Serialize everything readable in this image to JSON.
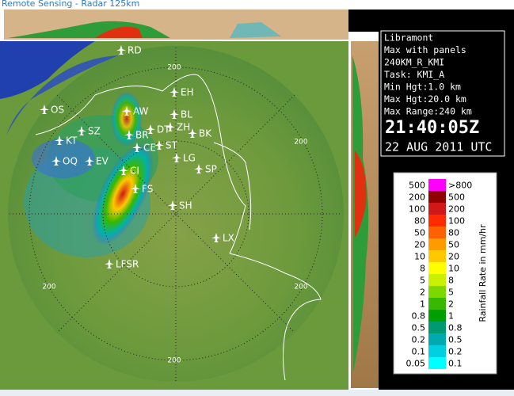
{
  "header": {
    "title": "Remote Sensing - Radar 125km"
  },
  "map": {
    "sites": [
      "RD",
      "EH",
      "OS",
      "AW",
      "BL",
      "SZ",
      "BR",
      "DT",
      "ZH",
      "BK",
      "KT",
      "CE",
      "ST",
      "LG",
      "OQ",
      "EV",
      "SP",
      "CI",
      "FS",
      "SH",
      "LX",
      "LFSR"
    ],
    "range_labels": [
      "200",
      "200",
      "200",
      "200",
      "200"
    ]
  },
  "info": {
    "lines": [
      "Libramont",
      "Max with panels",
      "240KM_R_KMI",
      "Task: KMI_A",
      "Min Hgt:1.0 km",
      "Max Hgt:20.0 km",
      "Max Range:240 km"
    ],
    "time": "21:40:05Z",
    "date": "22 AUG 2011 UTC"
  },
  "legend": {
    "title": "Rainfall Rate in mm/hr",
    "rows": [
      {
        "left": "500",
        "right": ">800",
        "color": "#ff00ff"
      },
      {
        "left": "200",
        "right": "500",
        "color": "#900000"
      },
      {
        "left": "100",
        "right": "200",
        "color": "#d01818"
      },
      {
        "left": "80",
        "right": "100",
        "color": "#ff2a00"
      },
      {
        "left": "50",
        "right": "80",
        "color": "#ff6000"
      },
      {
        "left": "20",
        "right": "50",
        "color": "#ff9a00"
      },
      {
        "left": "10",
        "right": "20",
        "color": "#ffc800"
      },
      {
        "left": "8",
        "right": "10",
        "color": "#ffff00"
      },
      {
        "left": "5",
        "right": "8",
        "color": "#c8f000"
      },
      {
        "left": "2",
        "right": "5",
        "color": "#7ed800"
      },
      {
        "left": "1",
        "right": "2",
        "color": "#38b800"
      },
      {
        "left": "0.8",
        "right": "1",
        "color": "#00a000"
      },
      {
        "left": "0.5",
        "right": "0.8",
        "color": "#009a70"
      },
      {
        "left": "0.2",
        "right": "0.5",
        "color": "#00aab0"
      },
      {
        "left": "0.1",
        "right": "0.2",
        "color": "#00d0e0"
      },
      {
        "left": "0.05",
        "right": "0.1",
        "color": "#00ffff"
      }
    ]
  }
}
